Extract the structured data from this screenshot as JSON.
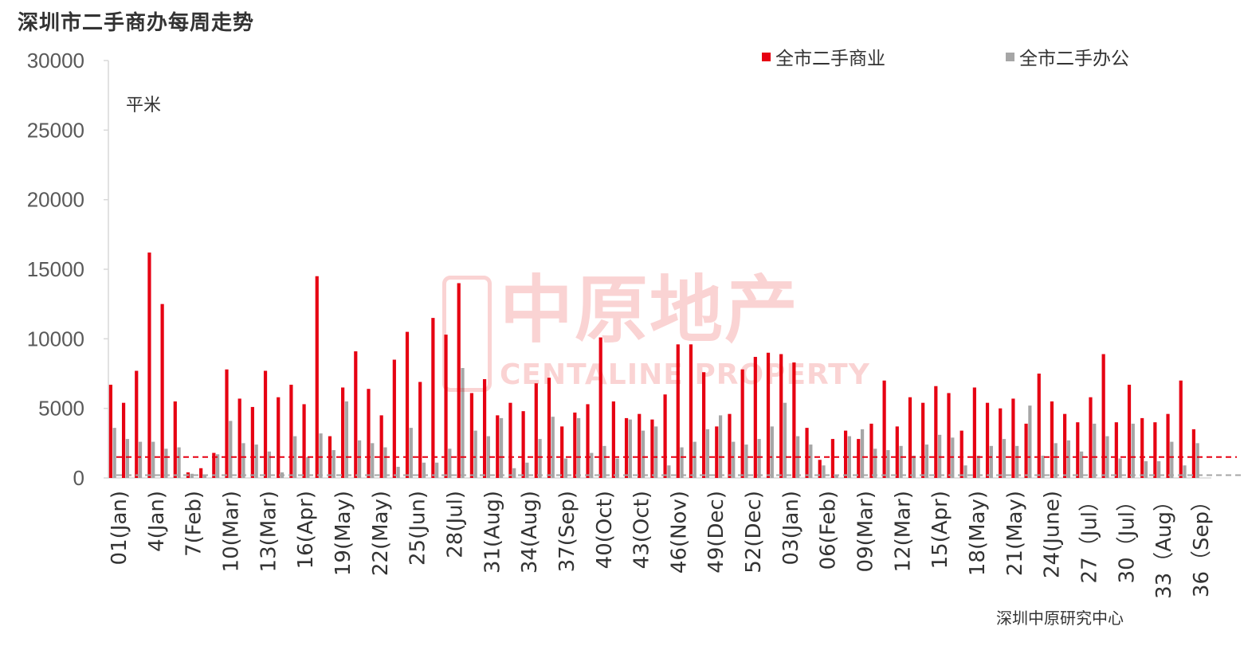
{
  "title": "深圳市二手商办每周走势",
  "unit_label": "平米",
  "source": "深圳中原研究中心",
  "watermark": {
    "cn": "中原地产",
    "en": "CENTALINE PROPERTY"
  },
  "colors": {
    "commercial": "#e60012",
    "office": "#a6a6a6",
    "axis": "#d9d9d9",
    "text": "#595959"
  },
  "chart_data": {
    "type": "bar",
    "ylim": [
      0,
      30000
    ],
    "yticks": [
      0,
      5000,
      10000,
      15000,
      20000,
      25000,
      30000
    ],
    "tick_labels": [
      "01(Jan)",
      "4(Jan)",
      "7(Feb)",
      "10(Mar)",
      "13(Mar)",
      "16(Apr)",
      "19(May)",
      "22(May)",
      "25(Jun)",
      "28(Jul)",
      "31(Aug)",
      "34(Aug)",
      "37(Sep)",
      "40(Oct)",
      "43(Oct)",
      "46(Nov)",
      "49(Dec)",
      "52(Dec)",
      "03(Jan)",
      "06(Feb)",
      "09(Mar)",
      "12(Mar)",
      "15(Apr)",
      "18(May)",
      "21(May)",
      "24(June)",
      "27（Jul）",
      "30（Jul）",
      "33（Aug）",
      "36（Sep）"
    ],
    "series": [
      {
        "name": "全市二手商业",
        "values": [
          6700,
          5400,
          7700,
          16200,
          12500,
          5500,
          400,
          700,
          1800,
          7800,
          5700,
          5100,
          7700,
          5800,
          6700,
          5300,
          14500,
          3000,
          6500,
          9100,
          6400,
          4500,
          8500,
          10500,
          6900,
          11500,
          10300,
          14000,
          6100,
          7100,
          4500,
          5400,
          4800,
          6800,
          7200,
          3700,
          4700,
          5300,
          10100,
          5500,
          4300,
          4600,
          4200,
          6000,
          9600,
          9600,
          7600,
          3700,
          4600,
          7800,
          8700,
          9000,
          8900,
          8300,
          3600,
          1300,
          2800,
          3400,
          2800,
          3900,
          7000,
          3700,
          5800,
          5400,
          6600,
          6100,
          3400,
          6500,
          5400,
          5000,
          5700,
          3900,
          7500,
          5500,
          4600,
          4000,
          5800,
          8900,
          4000,
          6700,
          4300,
          4000,
          4600,
          7000,
          3500
        ]
      },
      {
        "name": "全市二手办公",
        "values": [
          3600,
          2800,
          2600,
          2600,
          2100,
          2200,
          300,
          200,
          1700,
          4100,
          2500,
          2400,
          1900,
          400,
          3000,
          1500,
          3200,
          2000,
          5500,
          2700,
          2500,
          2200,
          800,
          3600,
          1100,
          1100,
          2100,
          7900,
          3400,
          3000,
          4300,
          700,
          1100,
          2800,
          4400,
          1400,
          4300,
          1800,
          2300,
          1400,
          4200,
          3400,
          3700,
          900,
          2200,
          2600,
          3500,
          4500,
          2600,
          2400,
          2800,
          3700,
          5400,
          3000,
          2400,
          900,
          200,
          3000,
          3500,
          2100,
          2000,
          2300,
          1600,
          2400,
          3100,
          2900,
          900,
          1600,
          2300,
          2800,
          2300,
          5200,
          1600,
          2500,
          2700,
          1900,
          3900,
          3000,
          1400,
          3900,
          1200,
          1200,
          2600,
          900,
          2500
        ]
      }
    ],
    "reference_lines": [
      {
        "series": "全市二手商业",
        "value": 1500,
        "style": "dashed"
      },
      {
        "series": "全市二手办公",
        "value": 200,
        "style": "dashed"
      }
    ]
  }
}
